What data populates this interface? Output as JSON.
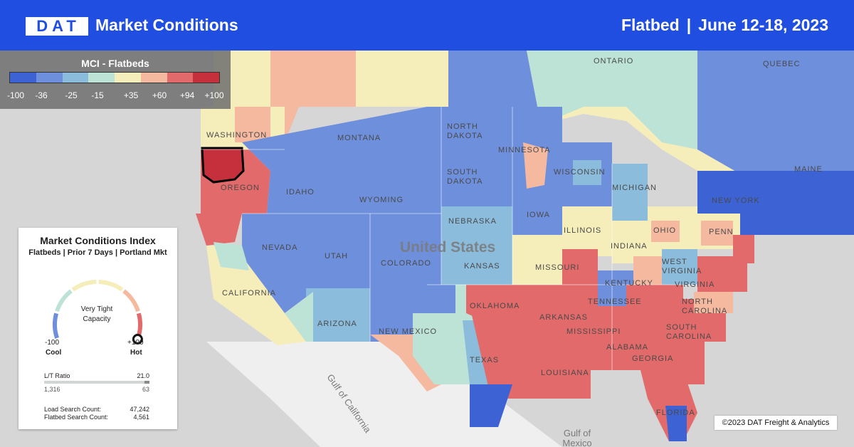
{
  "header": {
    "brand": "DAT",
    "title": "Market Conditions",
    "equipment": "Flatbed",
    "separator": "|",
    "date_range": "June 12-18, 2023"
  },
  "legend": {
    "title": "MCI - Flatbeds",
    "colors": [
      "#3c62d4",
      "#6e8fdc",
      "#8bbcdc",
      "#bde3d7",
      "#f5eebb",
      "#f5b9a0",
      "#e26a6a",
      "#c6303c"
    ],
    "ticks": [
      "-100",
      "-36",
      "-25",
      "-15",
      "+35",
      "+60",
      "+94",
      "+100"
    ]
  },
  "panel": {
    "title": "Market Conditions Index",
    "subtitle": "Flatbeds | Prior 7 Days | Portland Mkt",
    "gauge_status_line1": "Very Tight",
    "gauge_status_line2": "Capacity",
    "gauge_value": 100,
    "min_value": "-100",
    "min_label": "Cool",
    "max_value": "+100",
    "max_label": "Hot",
    "lt_ratio_label": "L/T Ratio",
    "lt_ratio_value": "21.0",
    "lt_left": "1,316",
    "lt_right": "63",
    "load_search_label": "Load Search Count:",
    "load_search_value": "47,242",
    "flatbed_search_label": "Flatbed Search Count:",
    "flatbed_search_value": "4,561"
  },
  "map": {
    "country_label": "United States",
    "selected_market": "Portland",
    "labels": [
      "Washington",
      "Oregon",
      "Idaho",
      "Montana",
      "North Dakota",
      "South Dakota",
      "Nebraska",
      "Kansas",
      "Wyoming",
      "Colorado",
      "Utah",
      "Nevada",
      "California",
      "Arizona",
      "New Mexico",
      "Texas",
      "Oklahoma",
      "Missouri",
      "Iowa",
      "Minnesota",
      "Wisconsin",
      "Michigan",
      "Illinois",
      "Indiana",
      "Ohio",
      "Penn",
      "New York",
      "Maine",
      "Kentucky",
      "Tennessee",
      "Arkansas",
      "Louisiana",
      "Mississippi",
      "Alabama",
      "Georgia",
      "Florida",
      "South Carolina",
      "North Carolina",
      "Virginia",
      "West Virginia",
      "Ontario",
      "Quebec"
    ],
    "water_labels": [
      "Gulf of Mexico",
      "Gulf of California"
    ],
    "hot_color": "#e26a6a",
    "cool_color": "#6e8fdc"
  },
  "copyright": "©2023 DAT Freight & Analytics"
}
